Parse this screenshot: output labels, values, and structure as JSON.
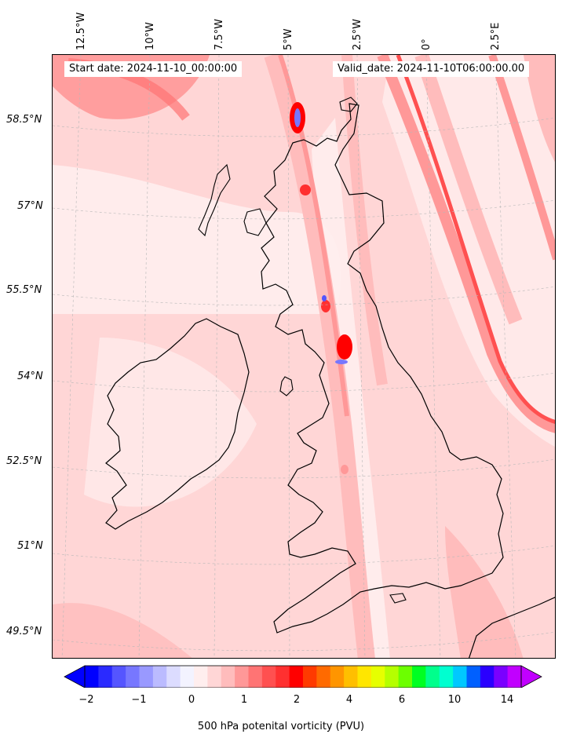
{
  "header": {
    "start_date": "Start date: 2024-11-10_00:00:00",
    "valid_date": "Valid_date: 2024-11-10T06:00:00.00"
  },
  "axes": {
    "lon_labels": [
      "12.5°W",
      "10°W",
      "7.5°W",
      "5°W",
      "2.5°W",
      "0°",
      "2.5°E"
    ],
    "lat_labels": [
      "58.5°N",
      "57°N",
      "55.5°N",
      "54°N",
      "52.5°N",
      "51°N",
      "49.5°N"
    ]
  },
  "colorbar": {
    "label": "500 hPa potenital vorticity (PVU)",
    "ticks": [
      "−2",
      "−1",
      "0",
      "1",
      "2",
      "4",
      "6",
      "10",
      "14"
    ],
    "colors": [
      "#0000ff",
      "#2a2aff",
      "#5555ff",
      "#7777ff",
      "#9999ff",
      "#bbbbff",
      "#dcdcff",
      "#f3f3ff",
      "#ffeeee",
      "#ffd6d6",
      "#ffbcbc",
      "#ff9898",
      "#ff7474",
      "#ff5050",
      "#ff3030",
      "#ff0000",
      "#ff3a00",
      "#ff6a00",
      "#ff9500",
      "#ffbf00",
      "#ffe600",
      "#e6ff00",
      "#b5ff00",
      "#6cff00",
      "#00ff22",
      "#00ff8c",
      "#00ffd0",
      "#00c8ff",
      "#0060ff",
      "#2a00ff",
      "#7a00ff",
      "#c100ff"
    ]
  },
  "colors": {
    "background_pv": "#ffd6d6",
    "low_pv": "#ffeeee",
    "high_pv": "#ff7474",
    "coast": "#000000"
  }
}
